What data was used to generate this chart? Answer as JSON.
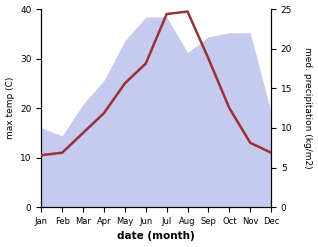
{
  "months": [
    "Jan",
    "Feb",
    "Mar",
    "Apr",
    "May",
    "Jun",
    "Jul",
    "Aug",
    "Sep",
    "Oct",
    "Nov",
    "Dec"
  ],
  "max_temp": [
    10.5,
    11.0,
    15.0,
    19.0,
    25.0,
    29.0,
    39.0,
    39.5,
    30.0,
    20.0,
    13.0,
    11.0
  ],
  "precipitation": [
    10.0,
    9.0,
    13.0,
    16.0,
    21.0,
    24.0,
    24.0,
    19.5,
    21.5,
    22.0,
    22.0,
    12.0
  ],
  "temp_color": "#993333",
  "precip_fill_color": "#c5caee",
  "temp_ylim": [
    0,
    40
  ],
  "precip_ylim": [
    0,
    25
  ],
  "xlabel": "date (month)",
  "ylabel_left": "max temp (C)",
  "ylabel_right": "med. precipitation (kg/m2)",
  "temp_yticks": [
    0,
    10,
    20,
    30,
    40
  ],
  "precip_yticks": [
    0,
    5,
    10,
    15,
    20,
    25
  ],
  "background_color": "#ffffff"
}
